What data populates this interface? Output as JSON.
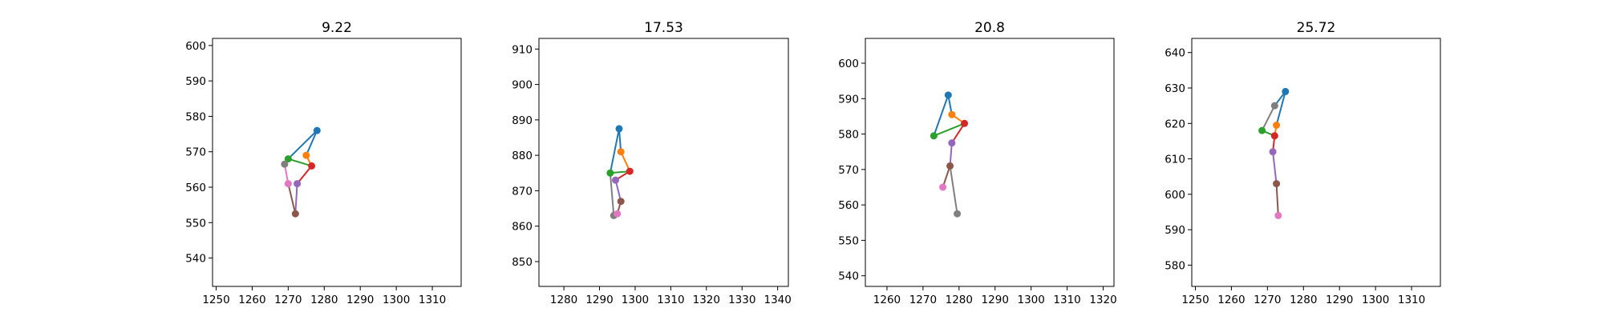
{
  "chart_data": [
    {
      "type": "line",
      "title": "9.22",
      "xlim": [
        1249,
        1318
      ],
      "ylim": [
        532,
        602
      ],
      "xticks": [
        1250,
        1260,
        1270,
        1280,
        1290,
        1300,
        1310
      ],
      "yticks": [
        540,
        550,
        560,
        570,
        580,
        590,
        600
      ],
      "points": [
        [
          1278,
          576
        ],
        [
          1275,
          569
        ],
        [
          1270,
          568
        ],
        [
          1276.5,
          566
        ],
        [
          1272.5,
          561
        ],
        [
          1272,
          552.5
        ],
        [
          1269,
          566.5
        ],
        [
          1270,
          561
        ]
      ],
      "edges": [
        [
          0,
          1
        ],
        [
          1,
          3
        ],
        [
          0,
          2
        ],
        [
          2,
          3
        ],
        [
          3,
          4
        ],
        [
          4,
          5
        ],
        [
          5,
          7
        ],
        [
          7,
          6
        ],
        [
          6,
          2
        ]
      ]
    },
    {
      "type": "line",
      "title": "17.53",
      "xlim": [
        1273,
        1343
      ],
      "ylim": [
        843,
        913
      ],
      "xticks": [
        1280,
        1290,
        1300,
        1310,
        1320,
        1330,
        1340
      ],
      "yticks": [
        850,
        860,
        870,
        880,
        890,
        900,
        910
      ],
      "points": [
        [
          1295.5,
          887.5
        ],
        [
          1296,
          881
        ],
        [
          1293,
          875
        ],
        [
          1298.5,
          875.5
        ],
        [
          1294.5,
          873
        ],
        [
          1296,
          867
        ],
        [
          1294,
          863
        ],
        [
          1295,
          863.5
        ]
      ],
      "edges": [
        [
          0,
          1
        ],
        [
          1,
          3
        ],
        [
          0,
          2
        ],
        [
          2,
          3
        ],
        [
          3,
          4
        ],
        [
          4,
          5
        ],
        [
          5,
          7
        ],
        [
          7,
          6
        ],
        [
          6,
          2
        ]
      ]
    },
    {
      "type": "line",
      "title": "20.8",
      "xlim": [
        1254,
        1323
      ],
      "ylim": [
        537,
        607
      ],
      "xticks": [
        1260,
        1270,
        1280,
        1290,
        1300,
        1310,
        1320
      ],
      "yticks": [
        540,
        550,
        560,
        570,
        580,
        590,
        600
      ],
      "points": [
        [
          1277,
          591
        ],
        [
          1278,
          585.5
        ],
        [
          1273,
          579.5
        ],
        [
          1281.5,
          583
        ],
        [
          1278,
          577.5
        ],
        [
          1277.5,
          571
        ],
        [
          1279.5,
          557.5
        ],
        [
          1275.5,
          565
        ]
      ],
      "edges": [
        [
          0,
          1
        ],
        [
          1,
          3
        ],
        [
          0,
          2
        ],
        [
          2,
          3
        ],
        [
          3,
          4
        ],
        [
          4,
          5
        ],
        [
          5,
          7
        ],
        [
          6,
          5
        ]
      ]
    },
    {
      "type": "line",
      "title": "25.72",
      "xlim": [
        1249,
        1318
      ],
      "ylim": [
        574,
        644
      ],
      "xticks": [
        1250,
        1260,
        1270,
        1280,
        1290,
        1300,
        1310
      ],
      "yticks": [
        580,
        590,
        600,
        610,
        620,
        630,
        640
      ],
      "points": [
        [
          1275,
          629
        ],
        [
          1272.5,
          619.5
        ],
        [
          1268.5,
          618
        ],
        [
          1272,
          616.5
        ],
        [
          1271.5,
          612
        ],
        [
          1272.5,
          603
        ],
        [
          1272,
          625
        ],
        [
          1273,
          594
        ]
      ],
      "edges": [
        [
          0,
          1
        ],
        [
          1,
          3
        ],
        [
          0,
          6
        ],
        [
          6,
          2
        ],
        [
          2,
          3
        ],
        [
          3,
          4
        ],
        [
          4,
          5
        ],
        [
          5,
          7
        ]
      ]
    }
  ],
  "point_colors": [
    "#1f77b4",
    "#ff7f0e",
    "#2ca02c",
    "#d62728",
    "#9467bd",
    "#8c564b",
    "#7f7f7f",
    "#e377c2"
  ]
}
